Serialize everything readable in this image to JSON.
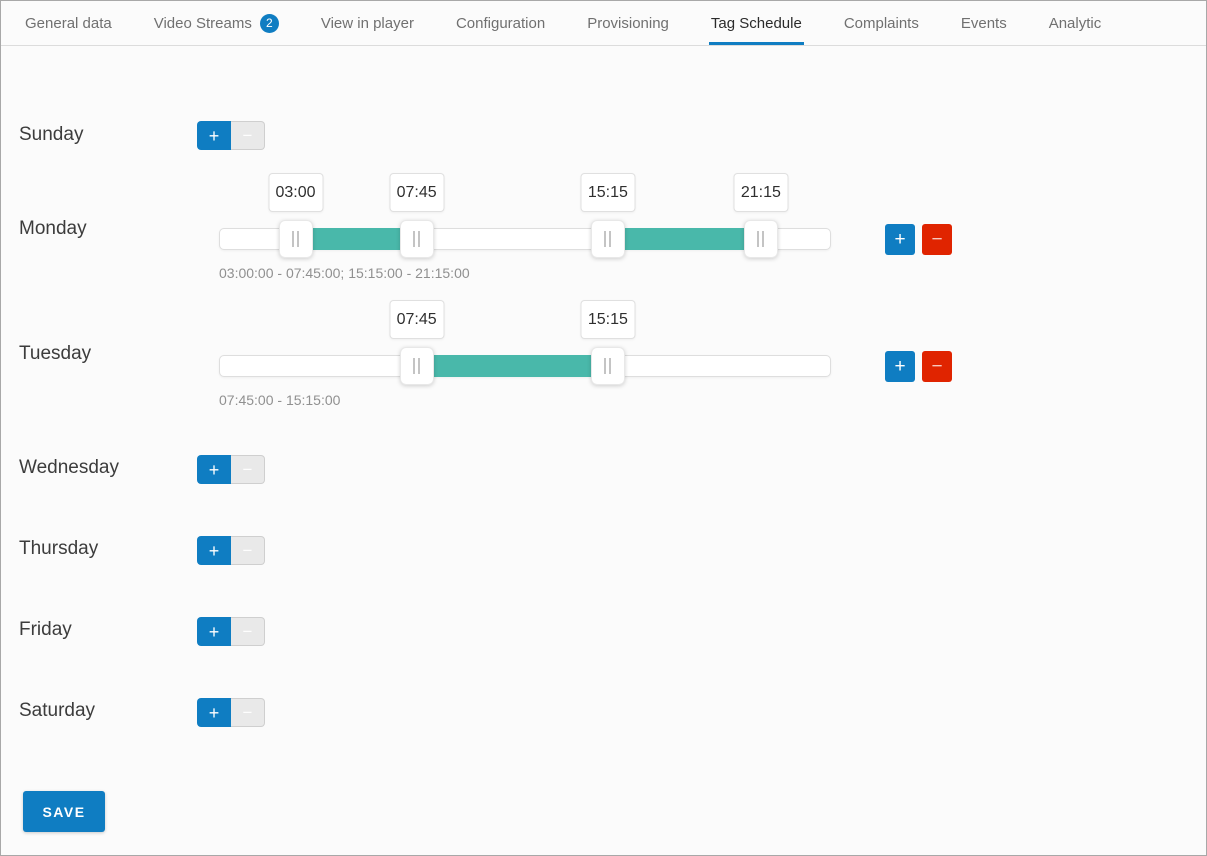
{
  "tabs": {
    "items": [
      {
        "label": "General data"
      },
      {
        "label": "Video Streams",
        "badge": "2"
      },
      {
        "label": "View in player"
      },
      {
        "label": "Configuration"
      },
      {
        "label": "Provisioning"
      },
      {
        "label": "Tag Schedule",
        "active": true
      },
      {
        "label": "Complaints"
      },
      {
        "label": "Events"
      },
      {
        "label": "Analytic"
      }
    ]
  },
  "slider_scale": {
    "min_hour": 0,
    "max_hour": 24
  },
  "days": [
    {
      "label": "Sunday",
      "has_schedule": false
    },
    {
      "label": "Monday",
      "has_schedule": true,
      "markers": [
        "03:00",
        "07:45",
        "15:15",
        "21:15"
      ],
      "ranges": [
        {
          "start": "03:00",
          "end": "07:45"
        },
        {
          "start": "15:15",
          "end": "21:15"
        }
      ],
      "summary": "03:00:00 - 07:45:00; 15:15:00 - 21:15:00"
    },
    {
      "label": "Tuesday",
      "has_schedule": true,
      "markers": [
        "07:45",
        "15:15"
      ],
      "ranges": [
        {
          "start": "07:45",
          "end": "15:15"
        }
      ],
      "summary": "07:45:00 - 15:15:00"
    },
    {
      "label": "Wednesday",
      "has_schedule": false
    },
    {
      "label": "Thursday",
      "has_schedule": false
    },
    {
      "label": "Friday",
      "has_schedule": false
    },
    {
      "label": "Saturday",
      "has_schedule": false
    }
  ],
  "buttons": {
    "add": "+",
    "remove": "−",
    "save": "SAVE"
  },
  "colors": {
    "accent_blue": "#0f7dc2",
    "danger_red": "#e02400",
    "range_teal": "#49b8aa"
  }
}
